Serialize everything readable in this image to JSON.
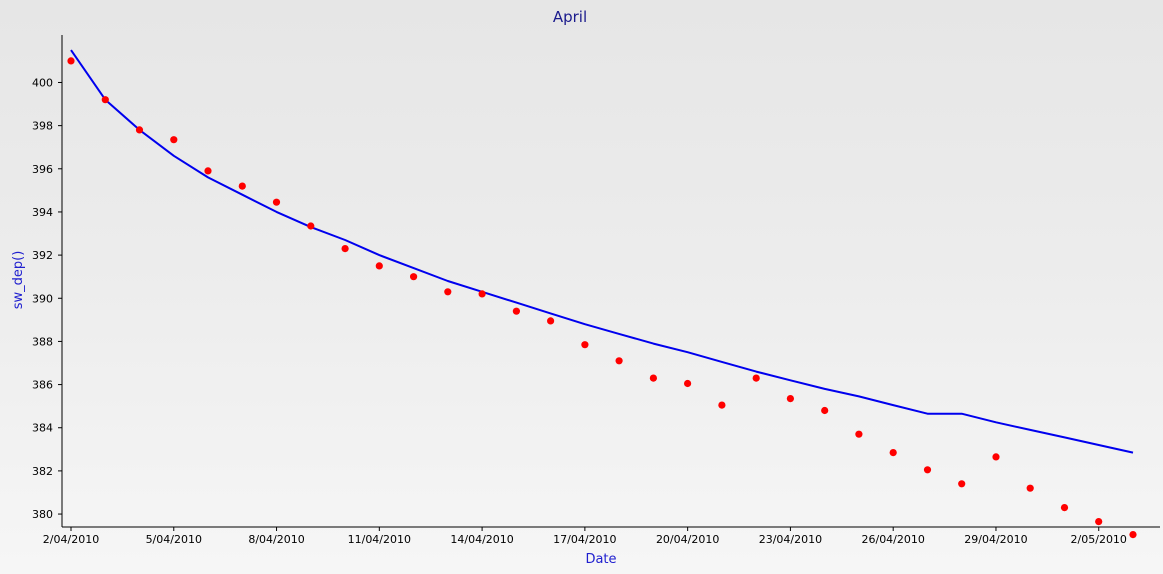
{
  "chart_data": {
    "type": "line",
    "title": "April",
    "xlabel": "Date",
    "ylabel": "sw_dep()",
    "x_tick_labels": [
      "2/04/2010",
      "5/04/2010",
      "8/04/2010",
      "11/04/2010",
      "14/04/2010",
      "17/04/2010",
      "20/04/2010",
      "23/04/2010",
      "26/04/2010",
      "29/04/2010",
      "2/05/2010"
    ],
    "y_ticks": [
      380,
      382,
      384,
      386,
      388,
      390,
      392,
      394,
      396,
      398,
      400
    ],
    "ylim": [
      379.4,
      402.2
    ],
    "x_range": [
      "2010-04-02",
      "2010-05-03"
    ],
    "grid": false,
    "legend": "none",
    "series": [
      {
        "type": "line",
        "color": "#0000ee",
        "x": [
          "2010-04-02",
          "2010-04-03",
          "2010-04-04",
          "2010-04-05",
          "2010-04-06",
          "2010-04-07",
          "2010-04-08",
          "2010-04-09",
          "2010-04-10",
          "2010-04-11",
          "2010-04-12",
          "2010-04-13",
          "2010-04-14",
          "2010-04-15",
          "2010-04-16",
          "2010-04-17",
          "2010-04-18",
          "2010-04-19",
          "2010-04-20",
          "2010-04-21",
          "2010-04-22",
          "2010-04-23",
          "2010-04-24",
          "2010-04-25",
          "2010-04-26",
          "2010-04-27",
          "2010-04-28",
          "2010-04-29",
          "2010-04-30",
          "2010-05-01",
          "2010-05-02",
          "2010-05-03"
        ],
        "y": [
          401.5,
          399.2,
          397.8,
          396.6,
          395.6,
          394.8,
          394.0,
          393.3,
          392.7,
          392.0,
          391.4,
          390.8,
          390.3,
          389.8,
          389.3,
          388.8,
          388.35,
          387.9,
          387.5,
          387.05,
          386.6,
          386.2,
          385.8,
          385.45,
          385.05,
          384.65,
          384.65,
          384.25,
          383.9,
          383.55,
          383.2,
          382.85
        ]
      },
      {
        "type": "scatter",
        "color": "#ff0000",
        "x": [
          "2010-04-02",
          "2010-04-03",
          "2010-04-04",
          "2010-04-05",
          "2010-04-06",
          "2010-04-07",
          "2010-04-08",
          "2010-04-09",
          "2010-04-10",
          "2010-04-11",
          "2010-04-12",
          "2010-04-13",
          "2010-04-14",
          "2010-04-15",
          "2010-04-16",
          "2010-04-17",
          "2010-04-18",
          "2010-04-19",
          "2010-04-20",
          "2010-04-21",
          "2010-04-22",
          "2010-04-23",
          "2010-04-24",
          "2010-04-25",
          "2010-04-26",
          "2010-04-27",
          "2010-04-28",
          "2010-04-29",
          "2010-04-30",
          "2010-05-01",
          "2010-05-02",
          "2010-05-03"
        ],
        "y": [
          401.0,
          399.2,
          397.8,
          397.35,
          395.9,
          395.2,
          394.45,
          393.35,
          392.3,
          391.5,
          391.0,
          390.3,
          390.2,
          389.4,
          388.95,
          387.85,
          387.1,
          386.3,
          386.05,
          385.05,
          386.3,
          385.35,
          384.8,
          383.7,
          382.85,
          382.05,
          381.4,
          382.65,
          381.2,
          380.3,
          379.65,
          379.05
        ]
      }
    ]
  }
}
